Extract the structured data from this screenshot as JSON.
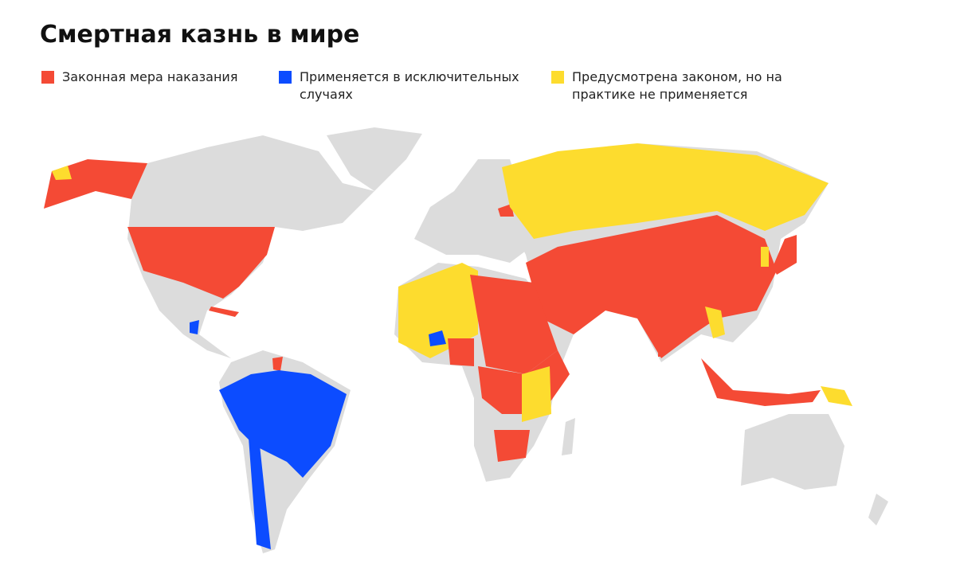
{
  "header": {
    "title": "Смертная казнь в мире"
  },
  "legend": [
    {
      "label": "Законная мера наказания",
      "color": "#f44a35"
    },
    {
      "label": "Применяется в исключительных случаях",
      "color": "#0c4cff"
    },
    {
      "label": "Предусмотрена законом, но на практике не применяется",
      "color": "#fddc2e"
    }
  ],
  "base_color": "#dcdcdc"
}
